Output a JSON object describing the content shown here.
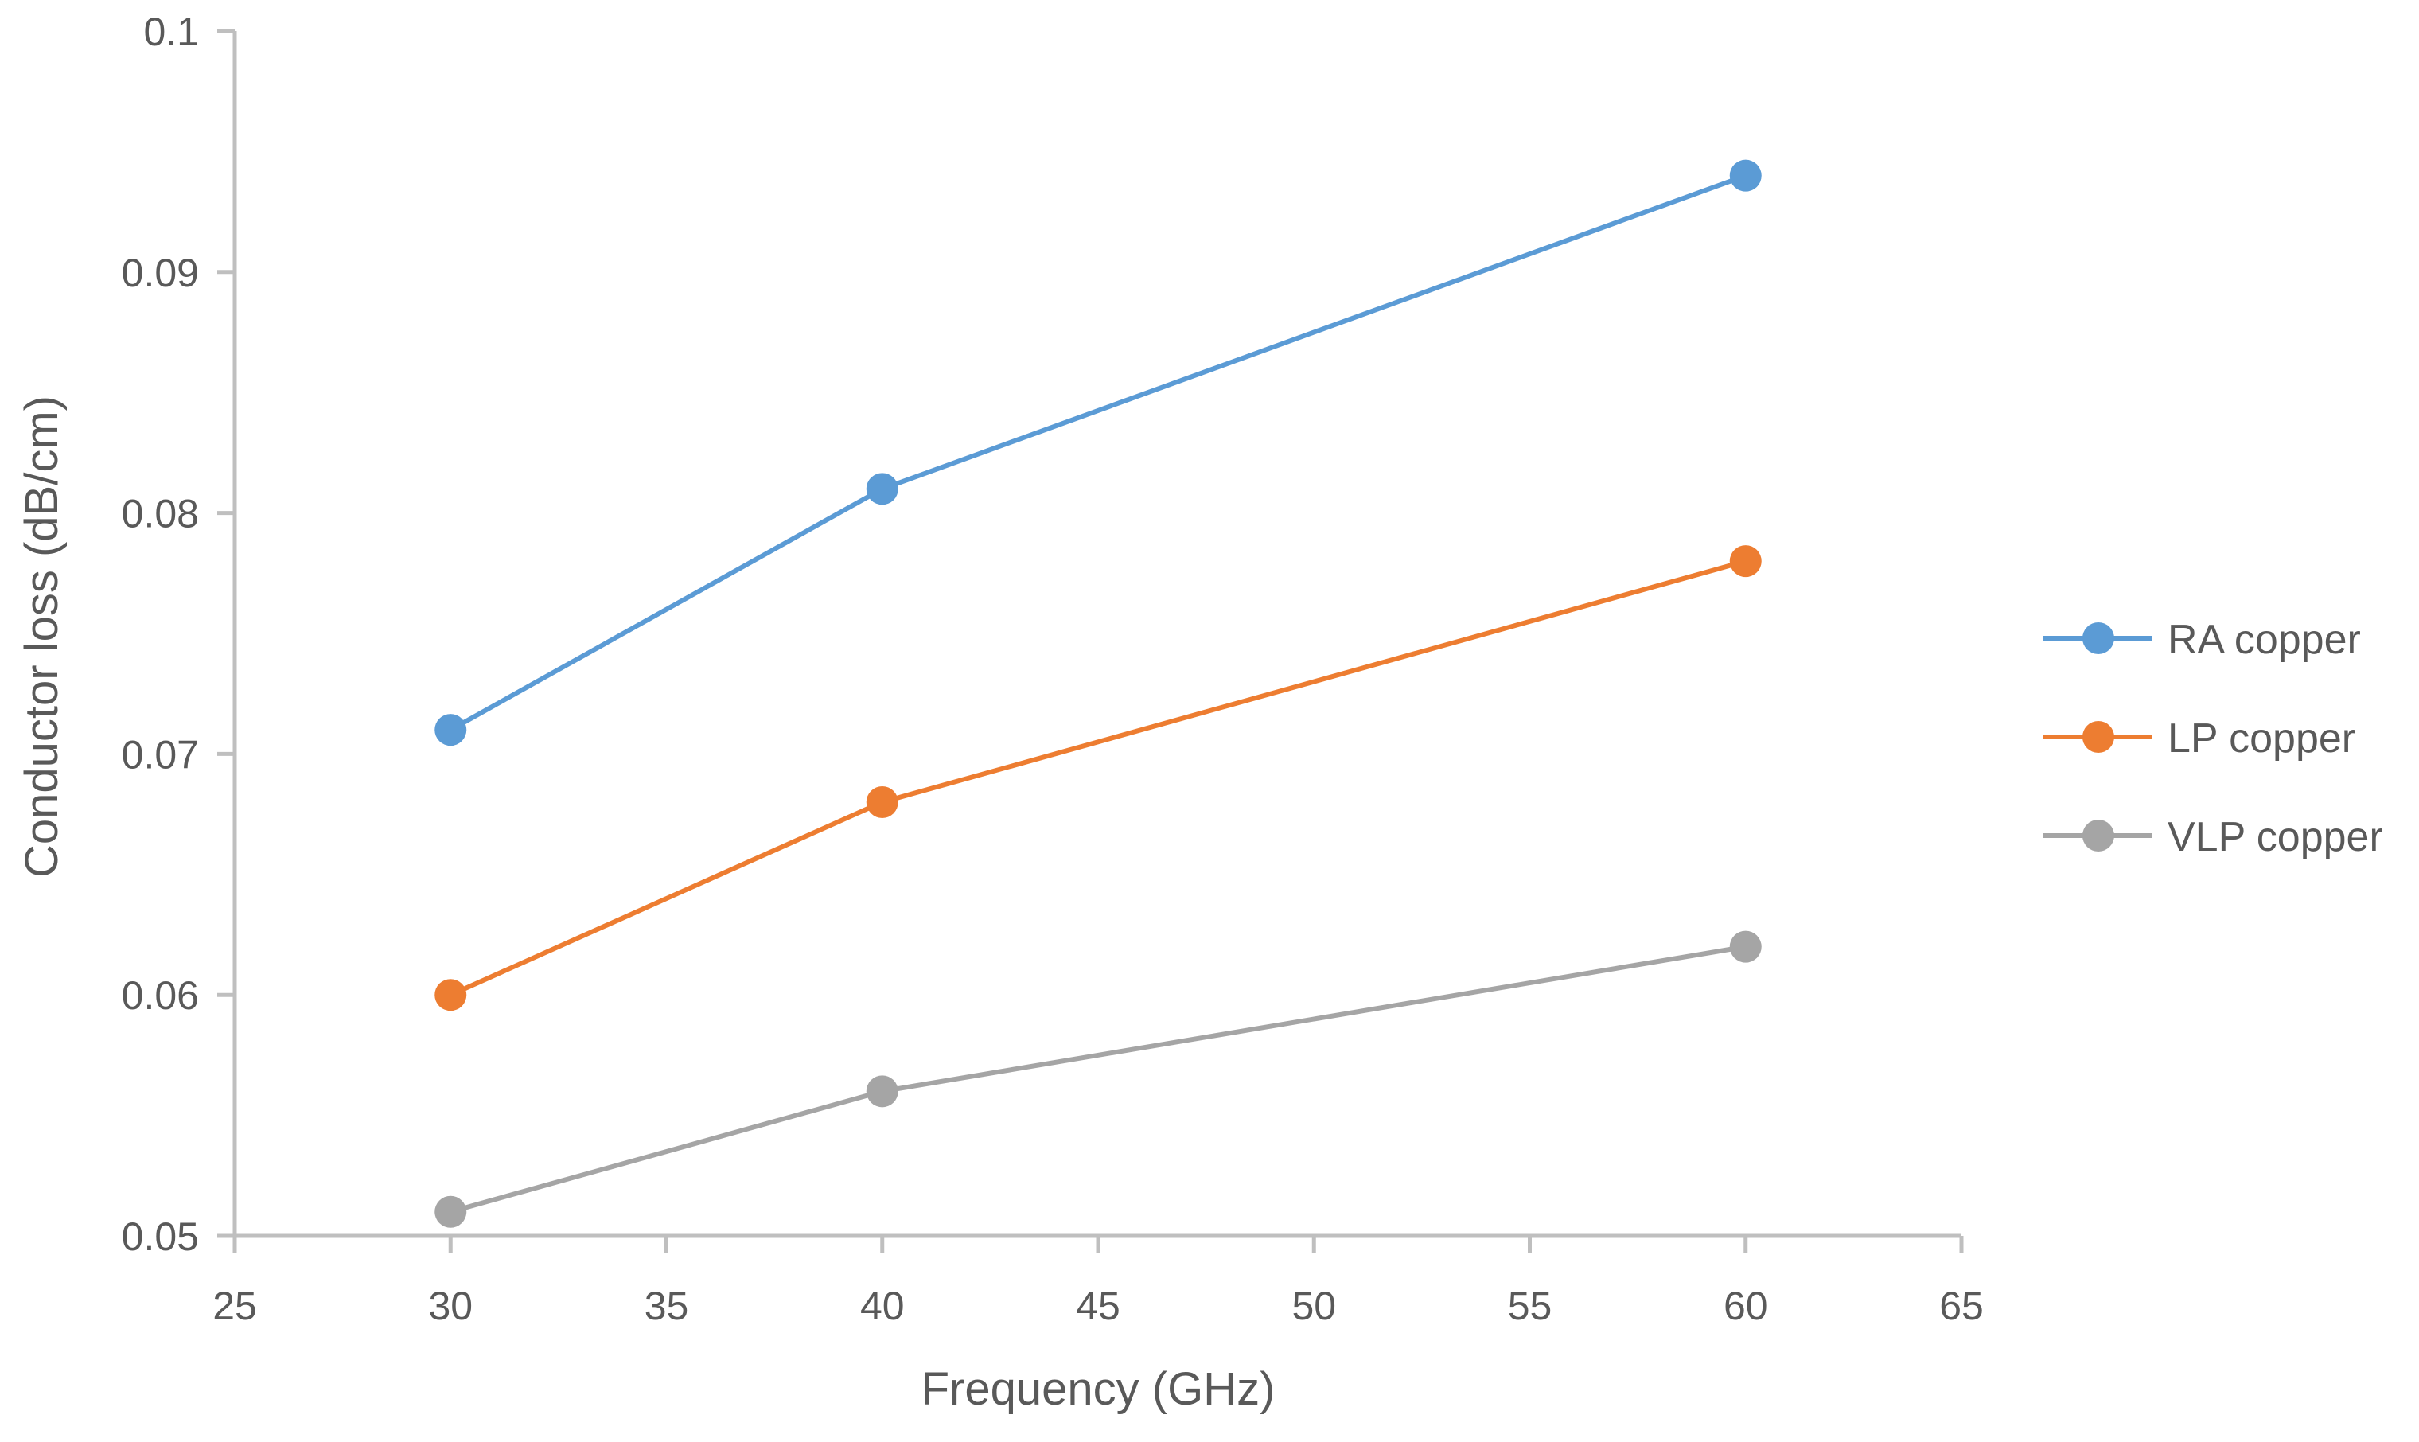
{
  "chart_data": {
    "type": "line",
    "title": "",
    "xlabel": "Frequency (GHz)",
    "ylabel": "Conductor loss (dB/cm)",
    "x": [
      30,
      40,
      60
    ],
    "xlim": [
      25,
      65
    ],
    "ylim": [
      0.05,
      0.1
    ],
    "xticks": [
      25,
      30,
      35,
      40,
      45,
      50,
      55,
      60,
      65
    ],
    "xtick_labels": [
      "25",
      "30",
      "35",
      "40",
      "45",
      "50",
      "55",
      "60",
      "65"
    ],
    "yticks": [
      0.05,
      0.06,
      0.07,
      0.08,
      0.09,
      0.1
    ],
    "ytick_labels": [
      "0.05",
      "0.06",
      "0.07",
      "0.08",
      "0.09",
      "0.1"
    ],
    "grid": false,
    "legend_position": "right",
    "series": [
      {
        "name": "RA copper",
        "color": "#5b9bd5",
        "values": [
          0.071,
          0.081,
          0.094
        ]
      },
      {
        "name": "LP copper",
        "color": "#ed7d31",
        "values": [
          0.06,
          0.068,
          0.078
        ]
      },
      {
        "name": "VLP copper",
        "color": "#a5a5a5",
        "values": [
          0.051,
          0.056,
          0.062
        ]
      }
    ]
  },
  "colors": {
    "axis": "#bfbfbf",
    "text": "#595959"
  }
}
